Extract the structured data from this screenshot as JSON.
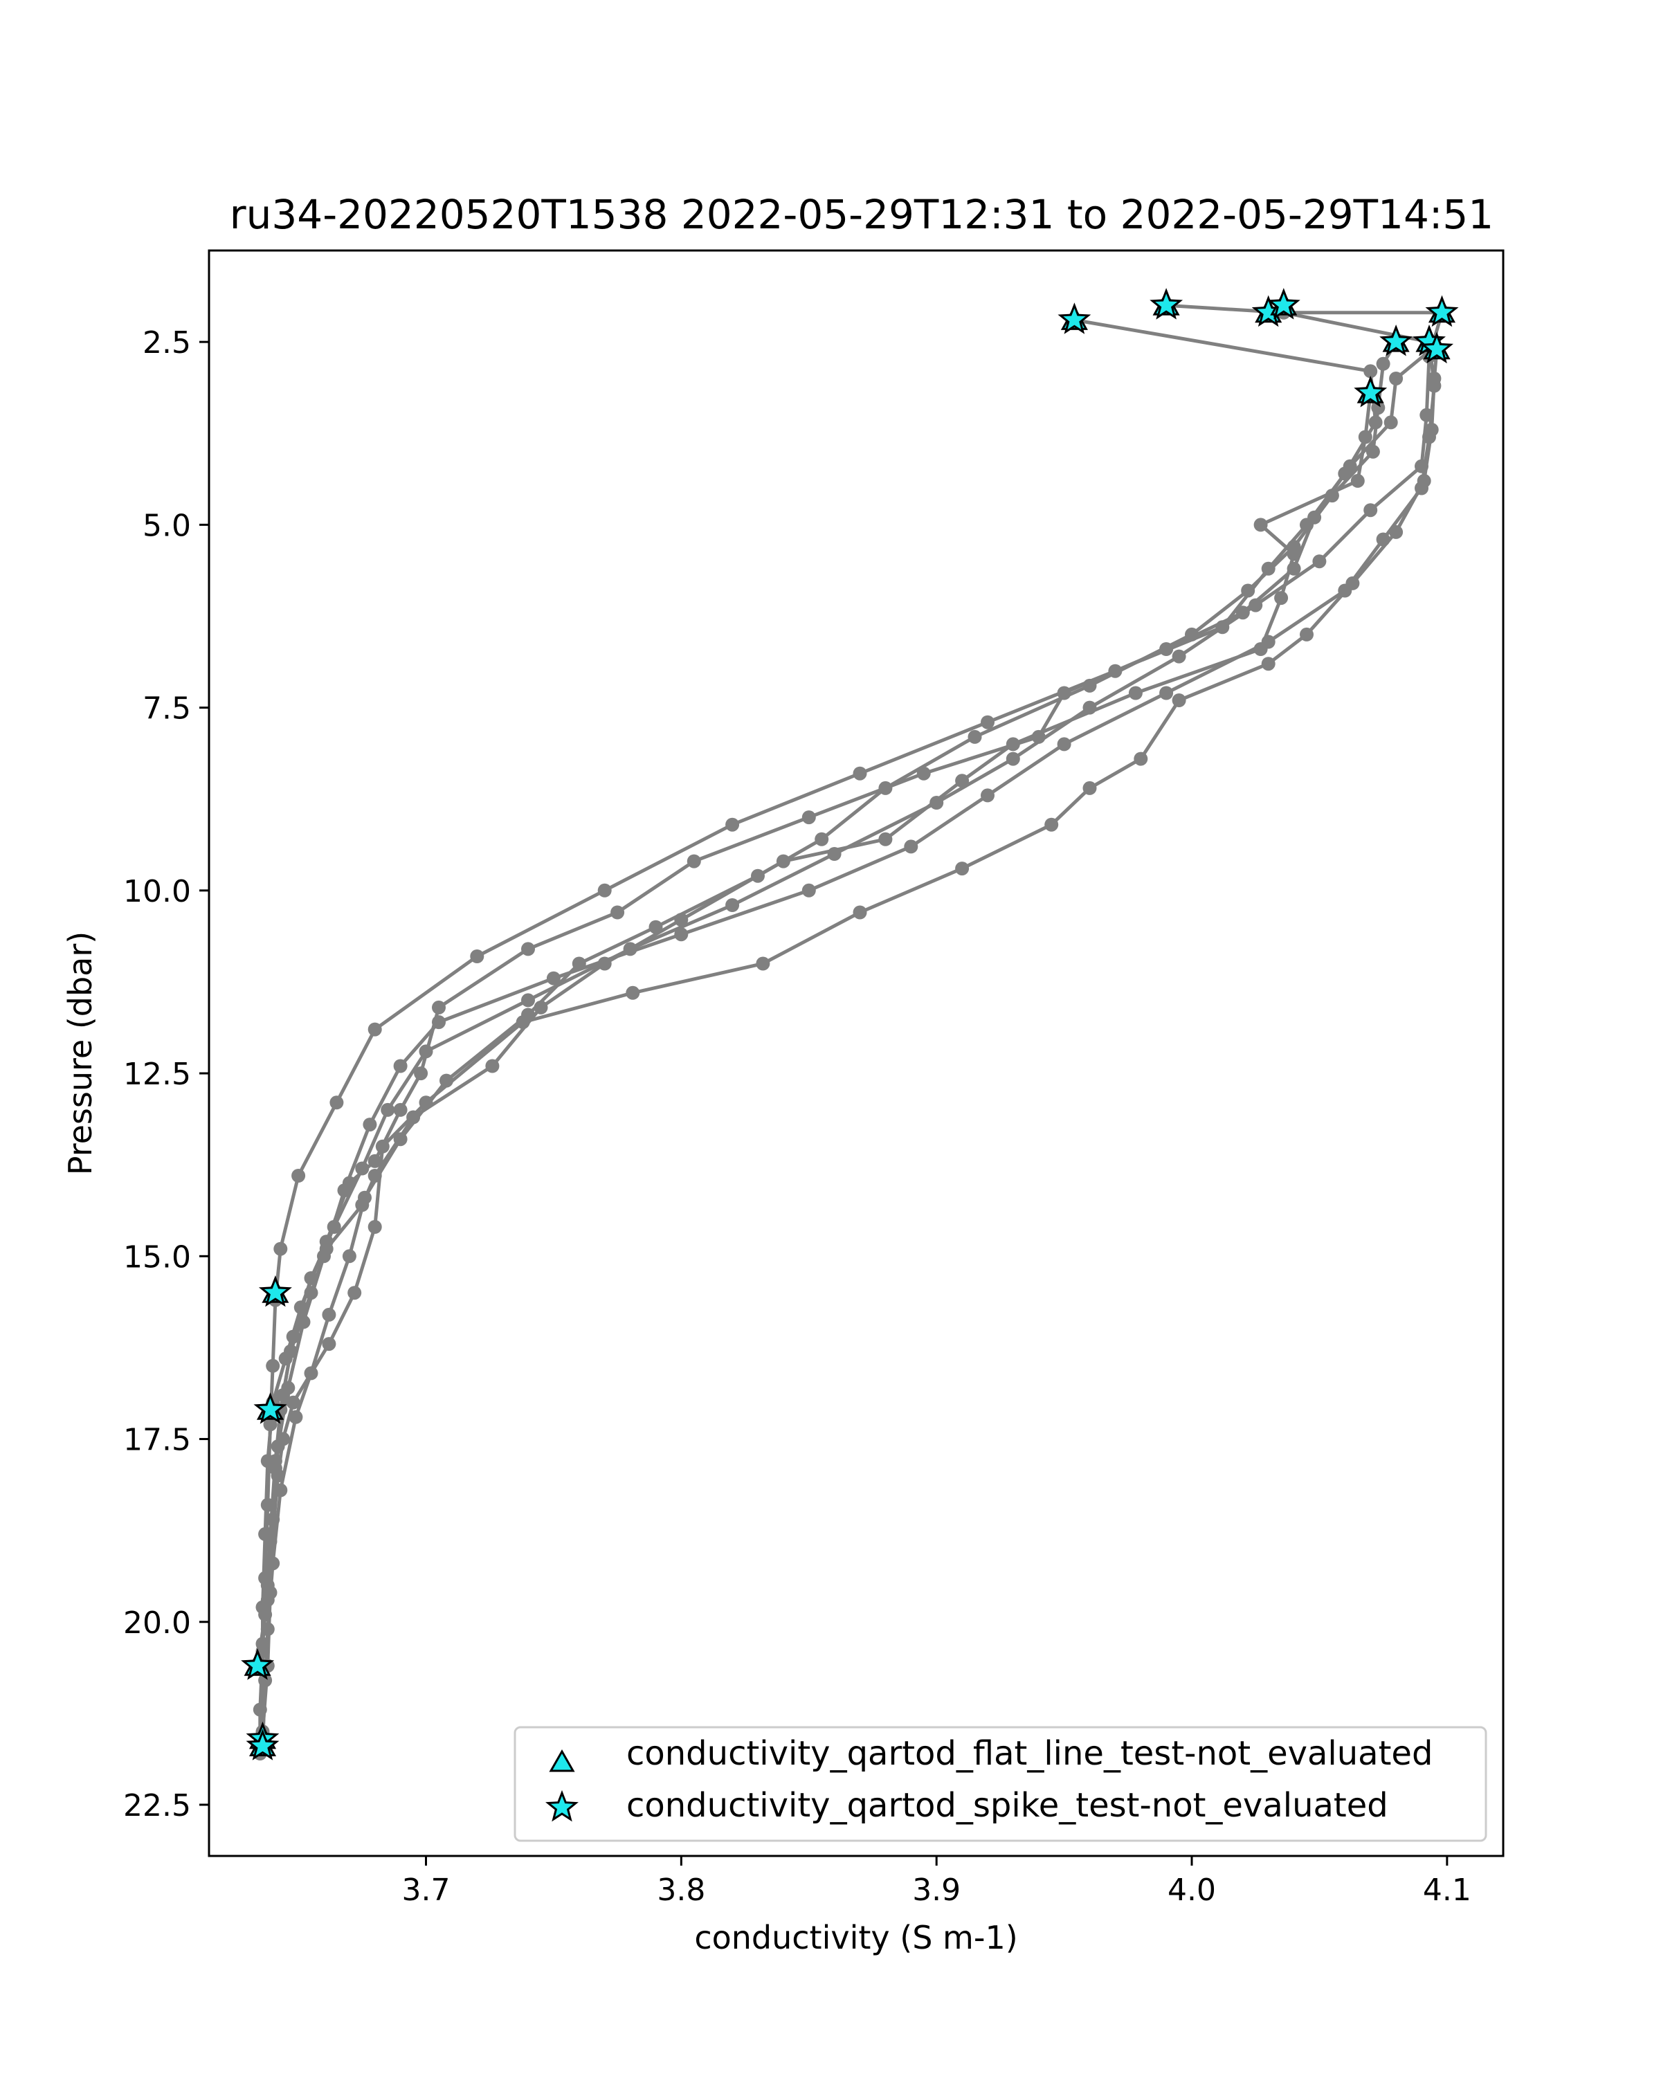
{
  "chart_data": {
    "type": "scatter",
    "title": "ru34-20220520T1538 2022-05-29T12:31 to 2022-05-29T14:51",
    "xlabel": "conductivity (S m-1)",
    "ylabel": "Pressure (dbar)",
    "xlim": [
      3.615,
      4.122
    ],
    "ylim": [
      23.2,
      1.25
    ],
    "y_inverted": true,
    "x_ticks": [
      "3.7",
      "3.8",
      "3.9",
      "4.0",
      "4.1"
    ],
    "y_ticks": [
      "2.5",
      "5.0",
      "7.5",
      "10.0",
      "12.5",
      "15.0",
      "17.5",
      "20.0",
      "22.5"
    ],
    "line_color": "#808080",
    "flag_color": "#1ee8ec",
    "grid": false,
    "legend_position": "lower-right",
    "series": [
      {
        "profile": 1,
        "points": [
          [
            3.954,
            2.2
          ],
          [
            4.07,
            2.9
          ],
          [
            4.072,
            3.6
          ],
          [
            4.06,
            4.3
          ],
          [
            4.045,
            5.0
          ],
          [
            4.03,
            5.6
          ],
          [
            4.012,
            6.4
          ],
          [
            3.97,
            7.0
          ],
          [
            3.92,
            7.7
          ],
          [
            3.87,
            8.4
          ],
          [
            3.82,
            9.1
          ],
          [
            3.77,
            10.0
          ],
          [
            3.72,
            10.9
          ],
          [
            3.68,
            11.9
          ],
          [
            3.665,
            12.9
          ],
          [
            3.65,
            13.9
          ],
          [
            3.643,
            14.9
          ],
          [
            3.641,
            15.6
          ],
          [
            3.64,
            16.5
          ],
          [
            3.639,
            17.3
          ],
          [
            3.638,
            18.4
          ],
          [
            3.637,
            19.4
          ],
          [
            3.636,
            20.4
          ],
          [
            3.635,
            21.2
          ],
          [
            3.635,
            21.8
          ]
        ]
      },
      {
        "profile": 2,
        "points": [
          [
            3.99,
            2.0
          ],
          [
            4.036,
            2.1
          ],
          [
            4.093,
            2.5
          ],
          [
            4.095,
            3.1
          ],
          [
            4.093,
            3.8
          ],
          [
            4.09,
            4.5
          ],
          [
            4.075,
            5.2
          ],
          [
            4.06,
            5.9
          ],
          [
            4.03,
            6.6
          ],
          [
            3.99,
            7.3
          ],
          [
            3.95,
            8.0
          ],
          [
            3.92,
            8.7
          ],
          [
            3.89,
            9.4
          ],
          [
            3.85,
            10.0
          ],
          [
            3.8,
            10.6
          ],
          [
            3.75,
            11.2
          ],
          [
            3.705,
            11.8
          ],
          [
            3.69,
            12.4
          ],
          [
            3.678,
            13.2
          ],
          [
            3.668,
            14.1
          ],
          [
            3.66,
            15.0
          ],
          [
            3.652,
            15.9
          ],
          [
            3.646,
            16.8
          ],
          [
            3.642,
            17.6
          ],
          [
            3.64,
            18.6
          ],
          [
            3.639,
            19.6
          ],
          [
            3.638,
            20.6
          ],
          [
            3.636,
            21.5
          ]
        ]
      },
      {
        "profile": 3,
        "points": [
          [
            4.03,
            2.1
          ],
          [
            4.098,
            2.1
          ],
          [
            4.093,
            2.7
          ],
          [
            4.092,
            3.5
          ],
          [
            4.09,
            4.2
          ],
          [
            4.07,
            4.8
          ],
          [
            4.05,
            5.5
          ],
          [
            4.025,
            6.1
          ],
          [
            3.995,
            6.8
          ],
          [
            3.96,
            7.5
          ],
          [
            3.93,
            8.2
          ],
          [
            3.9,
            8.8
          ],
          [
            3.86,
            9.5
          ],
          [
            3.82,
            10.2
          ],
          [
            3.78,
            10.8
          ],
          [
            3.74,
            11.5
          ],
          [
            3.7,
            12.2
          ],
          [
            3.685,
            13.0
          ],
          [
            3.675,
            13.8
          ],
          [
            3.664,
            14.6
          ],
          [
            3.655,
            15.3
          ],
          [
            3.648,
            16.1
          ],
          [
            3.644,
            16.9
          ],
          [
            3.641,
            17.9
          ],
          [
            3.639,
            18.9
          ],
          [
            3.637,
            19.9
          ],
          [
            3.634,
            20.6
          ]
        ]
      },
      {
        "profile": 4,
        "points": [
          [
            4.08,
            2.5
          ],
          [
            4.075,
            2.8
          ],
          [
            4.073,
            3.4
          ],
          [
            4.071,
            4.0
          ],
          [
            4.055,
            4.6
          ],
          [
            4.04,
            5.3
          ],
          [
            4.022,
            5.9
          ],
          [
            4.0,
            6.5
          ],
          [
            3.96,
            7.2
          ],
          [
            3.915,
            7.9
          ],
          [
            3.88,
            8.6
          ],
          [
            3.855,
            9.3
          ],
          [
            3.83,
            9.8
          ],
          [
            3.79,
            10.5
          ],
          [
            3.76,
            11.0
          ],
          [
            3.74,
            11.7
          ],
          [
            3.708,
            12.6
          ],
          [
            3.69,
            13.4
          ],
          [
            3.676,
            14.2
          ],
          [
            3.67,
            15.0
          ],
          [
            3.662,
            15.8
          ],
          [
            3.655,
            16.6
          ],
          [
            3.649,
            17.2
          ],
          [
            3.643,
            18.2
          ],
          [
            3.64,
            19.2
          ],
          [
            3.638,
            20.1
          ],
          [
            3.637,
            20.8
          ],
          [
            3.636,
            21.7
          ]
        ]
      },
      {
        "profile": 5,
        "points": [
          [
            4.096,
            2.6
          ],
          [
            4.095,
            3.0
          ],
          [
            4.094,
            3.7
          ],
          [
            4.091,
            4.4
          ],
          [
            4.08,
            5.1
          ],
          [
            4.063,
            5.8
          ],
          [
            4.045,
            6.5
          ],
          [
            4.03,
            6.9
          ],
          [
            3.995,
            7.4
          ],
          [
            3.98,
            8.2
          ],
          [
            3.96,
            8.6
          ],
          [
            3.945,
            9.1
          ],
          [
            3.91,
            9.7
          ],
          [
            3.87,
            10.3
          ],
          [
            3.832,
            11.0
          ],
          [
            3.781,
            11.4
          ],
          [
            3.738,
            11.8
          ],
          [
            3.7,
            12.9
          ],
          [
            3.683,
            13.5
          ],
          [
            3.68,
            14.6
          ],
          [
            3.672,
            15.5
          ],
          [
            3.662,
            16.2
          ],
          [
            3.648,
            17.0
          ],
          [
            3.644,
            17.5
          ],
          [
            3.642,
            18.0
          ],
          [
            3.639,
            19.2
          ],
          [
            3.638,
            19.7
          ]
        ]
      },
      {
        "profile": 6,
        "points": [
          [
            4.07,
            3.2
          ],
          [
            4.068,
            3.8
          ],
          [
            4.065,
            4.4
          ],
          [
            4.027,
            5.0
          ],
          [
            4.04,
            5.4
          ],
          [
            4.035,
            6.0
          ],
          [
            4.027,
            6.7
          ],
          [
            3.978,
            7.3
          ],
          [
            3.93,
            8.0
          ],
          [
            3.91,
            8.5
          ],
          [
            3.88,
            9.3
          ],
          [
            3.84,
            9.6
          ],
          [
            3.8,
            10.4
          ],
          [
            3.77,
            11.0
          ],
          [
            3.745,
            11.6
          ],
          [
            3.726,
            12.4
          ],
          [
            3.695,
            13.1
          ],
          [
            3.68,
            13.9
          ],
          [
            3.675,
            14.3
          ],
          [
            3.661,
            14.9
          ],
          [
            3.655,
            15.5
          ],
          [
            3.647,
            16.3
          ],
          [
            3.643,
            17.1
          ],
          [
            3.641,
            17.8
          ],
          [
            3.639,
            18.8
          ],
          [
            3.638,
            19.5
          ],
          [
            3.636,
            20.3
          ]
        ]
      },
      {
        "profile": 7,
        "points": [
          [
            4.094,
            2.6
          ],
          [
            4.08,
            3.0
          ],
          [
            4.078,
            3.6
          ],
          [
            4.062,
            4.2
          ],
          [
            4.048,
            4.9
          ],
          [
            4.04,
            5.6
          ],
          [
            4.02,
            6.2
          ],
          [
            3.99,
            6.7
          ],
          [
            3.95,
            7.3
          ],
          [
            3.94,
            7.9
          ],
          [
            3.895,
            8.4
          ],
          [
            3.85,
            9.0
          ],
          [
            3.805,
            9.6
          ],
          [
            3.775,
            10.3
          ],
          [
            3.74,
            10.8
          ],
          [
            3.705,
            11.6
          ],
          [
            3.698,
            12.5
          ],
          [
            3.69,
            13.0
          ],
          [
            3.68,
            13.7
          ],
          [
            3.67,
            14.0
          ],
          [
            3.661,
            14.8
          ],
          [
            3.651,
            15.7
          ],
          [
            3.645,
            16.4
          ],
          [
            3.64,
            17.0
          ],
          [
            3.638,
            17.8
          ],
          [
            3.637,
            18.8
          ],
          [
            3.636,
            19.8
          ],
          [
            3.636,
            21.6
          ]
        ]
      }
    ],
    "flagged_points": [
      [
        3.954,
        2.2
      ],
      [
        3.99,
        2.0
      ],
      [
        4.03,
        2.1
      ],
      [
        4.036,
        2.0
      ],
      [
        4.098,
        2.1
      ],
      [
        4.08,
        2.5
      ],
      [
        4.093,
        2.5
      ],
      [
        4.096,
        2.6
      ],
      [
        4.07,
        3.2
      ],
      [
        3.641,
        15.5
      ],
      [
        3.639,
        17.1
      ],
      [
        3.634,
        20.6
      ],
      [
        3.636,
        21.6
      ],
      [
        3.636,
        21.7
      ]
    ],
    "legend": [
      {
        "marker": "triangle",
        "label": "conductivity_qartod_flat_line_test-not_evaluated"
      },
      {
        "marker": "star",
        "label": "conductivity_qartod_spike_test-not_evaluated"
      }
    ]
  }
}
